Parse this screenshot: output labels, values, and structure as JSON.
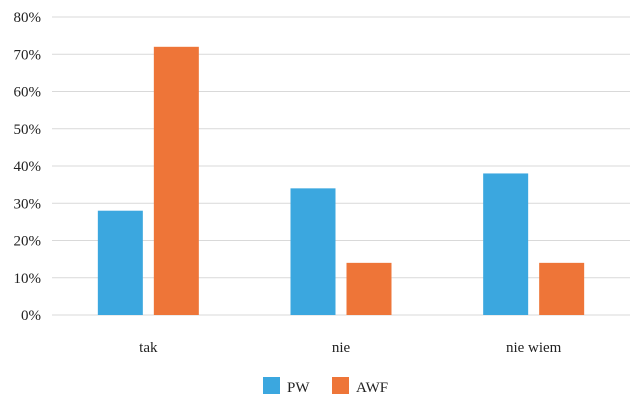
{
  "chart_data": {
    "type": "bar",
    "categories": [
      "tak",
      "nie",
      "nie wiem"
    ],
    "series": [
      {
        "name": "PW",
        "values": [
          28,
          34,
          38
        ],
        "color": "#3BA7DF"
      },
      {
        "name": "AWF",
        "values": [
          72,
          14,
          14
        ],
        "color": "#EE7538"
      }
    ],
    "ylim": [
      0,
      80
    ],
    "yticks": [
      "0%",
      "10%",
      "20%",
      "30%",
      "40%",
      "50%",
      "60%",
      "70%",
      "80%"
    ],
    "grid": true,
    "legend": "bottom",
    "title": "",
    "xlabel": "",
    "ylabel": ""
  }
}
